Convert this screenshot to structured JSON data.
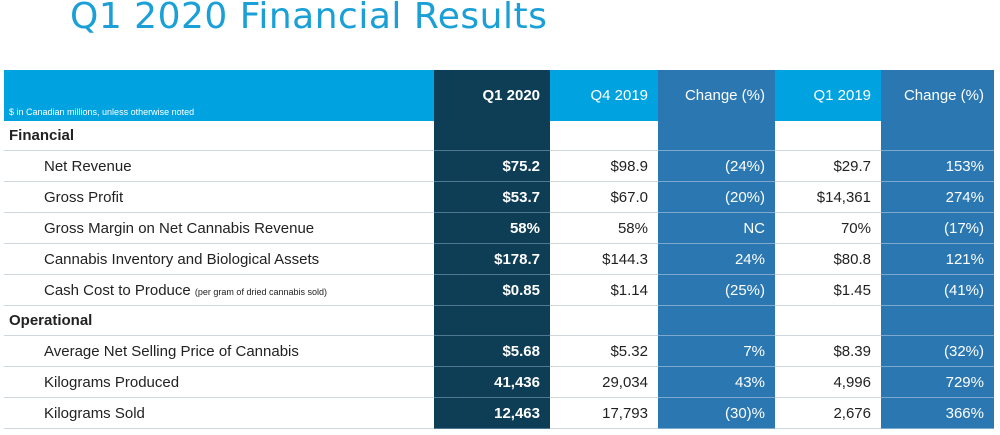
{
  "title": "Q1 2020 Financial Results",
  "table": {
    "note": "$ in Canadian millions, unless otherwise noted",
    "headers": [
      "Q1 2020",
      "Q4 2019",
      "Change (%)",
      "Q1 2019",
      "Change (%)"
    ],
    "sections": [
      {
        "name": "Financial",
        "rows": [
          {
            "label": "Net Revenue",
            "values": [
              "$75.2",
              "$98.9",
              "(24%)",
              "$29.7",
              "153%"
            ]
          },
          {
            "label": "Gross Profit",
            "values": [
              "$53.7",
              "$67.0",
              "(20%)",
              "$14,361",
              "274%"
            ]
          },
          {
            "label": "Gross Margin on Net Cannabis Revenue",
            "values": [
              "58%",
              "58%",
              "NC",
              "70%",
              "(17%)"
            ]
          },
          {
            "label": "Cannabis Inventory and Biological Assets",
            "values": [
              "$178.7",
              "$144.3",
              "24%",
              "$80.8",
              "121%"
            ]
          },
          {
            "label": "Cash Cost to Produce",
            "label_note": "(per gram of dried cannabis sold)",
            "values": [
              "$0.85",
              "$1.14",
              "(25%)",
              "$1.45",
              "(41%)"
            ]
          }
        ]
      },
      {
        "name": "Operational",
        "rows": [
          {
            "label": "Average Net Selling Price of Cannabis",
            "values": [
              "$5.68",
              "$5.32",
              "7%",
              "$8.39",
              "(32%)"
            ]
          },
          {
            "label": "Kilograms Produced",
            "values": [
              "41,436",
              "29,034",
              "43%",
              "4,996",
              "729%"
            ]
          },
          {
            "label": "Kilograms Sold",
            "values": [
              "12,463",
              "17,793",
              "(30)%",
              "2,676",
              "366%"
            ]
          }
        ]
      }
    ]
  },
  "colors": {
    "title": "#1aa0d6",
    "header_bg": "#00a3e0",
    "current_col": "#0e3d56",
    "change_col": "#2a77b2"
  }
}
